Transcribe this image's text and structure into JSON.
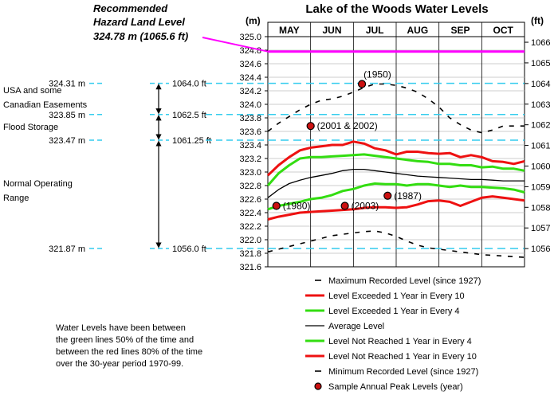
{
  "chart_data": {
    "type": "line",
    "title": "Lake of the Woods Water Levels",
    "ylabel_left": "(m)",
    "ylabel_right": "(ft)",
    "months": [
      "MAY",
      "JUN",
      "JUL",
      "AUG",
      "SEP",
      "OCT"
    ],
    "y_ticks_m": [
      "325.0",
      "324.8",
      "324.6",
      "324.4",
      "324.2",
      "324.0",
      "323.8",
      "323.6",
      "323.4",
      "323.2",
      "323.0",
      "322.8",
      "322.6",
      "322.4",
      "322.2",
      "322.0",
      "321.8",
      "321.6"
    ],
    "y_ticks_ft": [
      "1066",
      "1065",
      "1064",
      "1063",
      "1062",
      "1061",
      "1060",
      "1059",
      "1058",
      "1057",
      "1056"
    ],
    "ylim_m": [
      321.6,
      325.0
    ],
    "grid": true,
    "hazard": {
      "title_line1": "Recommended",
      "title_line2": "Hazard Land Level",
      "value_text": "324.78 m (1065.6 ft)",
      "value_m": 324.78,
      "color": "#ff00ff"
    },
    "reference_levels": [
      {
        "m_text": "324.31 m",
        "ft_text": "1064.0 ft",
        "value_m": 324.31
      },
      {
        "m_text": "323.85 m",
        "ft_text": "1062.5 ft",
        "value_m": 323.85
      },
      {
        "m_text": "323.47 m",
        "ft_text": "1061.25 ft",
        "value_m": 323.47
      },
      {
        "m_text": "321.87 m",
        "ft_text": "1056.0 ft",
        "value_m": 321.87
      }
    ],
    "reference_color": "#33ccee",
    "zone_labels": {
      "usa_line1": "USA  and some",
      "usa_line2": "Canadian Easements",
      "flood": "Flood Storage",
      "normal_line1": "Normal Operating",
      "normal_line2": "Range"
    },
    "series": [
      {
        "name": "Maximum Recorded Level (since 1927)",
        "color": "#000000",
        "style": "dashed",
        "x": [
          0.0,
          0.25,
          0.5,
          0.75,
          1.0,
          1.25,
          1.5,
          1.75,
          2.0,
          2.25,
          2.5,
          2.75,
          3.0,
          3.25,
          3.5,
          3.75,
          4.0,
          4.25,
          4.5,
          4.75,
          5.0,
          5.25,
          5.5,
          5.75,
          6.0
        ],
        "y": [
          323.6,
          323.72,
          323.82,
          323.92,
          324.0,
          324.06,
          324.08,
          324.12,
          324.18,
          324.25,
          324.3,
          324.3,
          324.28,
          324.24,
          324.18,
          324.08,
          323.96,
          323.8,
          323.7,
          323.62,
          323.58,
          323.62,
          323.68,
          323.68,
          323.68
        ]
      },
      {
        "name": "Level Exceeded 1 Year in Every 10",
        "color": "#ee1111",
        "style": "solid",
        "x": [
          0.0,
          0.25,
          0.5,
          0.75,
          1.0,
          1.25,
          1.5,
          1.75,
          2.0,
          2.25,
          2.5,
          2.75,
          3.0,
          3.25,
          3.5,
          3.75,
          4.0,
          4.25,
          4.5,
          4.75,
          5.0,
          5.25,
          5.5,
          5.75,
          6.0
        ],
        "y": [
          322.95,
          323.1,
          323.22,
          323.32,
          323.36,
          323.38,
          323.4,
          323.4,
          323.45,
          323.42,
          323.35,
          323.32,
          323.26,
          323.3,
          323.3,
          323.28,
          323.27,
          323.28,
          323.22,
          323.25,
          323.22,
          323.16,
          323.15,
          323.12,
          323.16
        ]
      },
      {
        "name": "Level Exceeded 1 Year in Every 4",
        "color": "#33dd11",
        "style": "solid",
        "x": [
          0.0,
          0.25,
          0.5,
          0.75,
          1.0,
          1.25,
          1.5,
          1.75,
          2.0,
          2.25,
          2.5,
          2.75,
          3.0,
          3.25,
          3.5,
          3.75,
          4.0,
          4.25,
          4.5,
          4.75,
          5.0,
          5.25,
          5.5,
          5.75,
          6.0
        ],
        "y": [
          322.8,
          322.98,
          323.1,
          323.2,
          323.22,
          323.22,
          323.23,
          323.24,
          323.25,
          323.26,
          323.24,
          323.22,
          323.2,
          323.18,
          323.16,
          323.15,
          323.12,
          323.12,
          323.1,
          323.1,
          323.07,
          323.08,
          323.05,
          323.05,
          323.02
        ]
      },
      {
        "name": "Average Level",
        "color": "#000000",
        "style": "solid",
        "x": [
          0.0,
          0.25,
          0.5,
          0.75,
          1.0,
          1.25,
          1.5,
          1.75,
          2.0,
          2.25,
          2.5,
          2.75,
          3.0,
          3.25,
          3.5,
          3.75,
          4.0,
          4.25,
          4.5,
          4.75,
          5.0,
          5.25,
          5.5,
          5.75,
          6.0
        ],
        "y": [
          322.62,
          322.74,
          322.83,
          322.88,
          322.92,
          322.95,
          322.98,
          323.02,
          323.04,
          323.04,
          323.02,
          323.0,
          322.98,
          322.96,
          322.94,
          322.93,
          322.92,
          322.91,
          322.9,
          322.89,
          322.89,
          322.88,
          322.87,
          322.87,
          322.87
        ]
      },
      {
        "name": "Level Not Reached 1 Year in Every 4",
        "color": "#33dd11",
        "style": "solid",
        "x": [
          0.0,
          0.25,
          0.5,
          0.75,
          1.0,
          1.25,
          1.5,
          1.75,
          2.0,
          2.25,
          2.5,
          2.75,
          3.0,
          3.25,
          3.5,
          3.75,
          4.0,
          4.25,
          4.5,
          4.75,
          5.0,
          5.25,
          5.5,
          5.75,
          6.0
        ],
        "y": [
          322.45,
          322.5,
          322.53,
          322.56,
          322.6,
          322.62,
          322.66,
          322.72,
          322.75,
          322.8,
          322.83,
          322.82,
          322.82,
          322.8,
          322.82,
          322.82,
          322.8,
          322.78,
          322.8,
          322.78,
          322.78,
          322.77,
          322.76,
          322.74,
          322.7
        ]
      },
      {
        "name": "Level Not Reached 1 Year in Every 10",
        "color": "#ee1111",
        "style": "solid",
        "x": [
          0.0,
          0.25,
          0.5,
          0.75,
          1.0,
          1.25,
          1.5,
          1.75,
          2.0,
          2.25,
          2.5,
          2.75,
          3.0,
          3.25,
          3.5,
          3.75,
          4.0,
          4.25,
          4.5,
          4.75,
          5.0,
          5.25,
          5.5,
          5.75,
          6.0
        ],
        "y": [
          322.3,
          322.34,
          322.37,
          322.4,
          322.41,
          322.42,
          322.43,
          322.44,
          322.45,
          322.47,
          322.48,
          322.48,
          322.47,
          322.48,
          322.52,
          322.57,
          322.58,
          322.56,
          322.5,
          322.56,
          322.62,
          322.64,
          322.62,
          322.6,
          322.58
        ]
      },
      {
        "name": "Minimum Recorded Level (since 1927)",
        "color": "#000000",
        "style": "dashed",
        "x": [
          0.0,
          0.25,
          0.5,
          0.75,
          1.0,
          1.25,
          1.5,
          1.75,
          2.0,
          2.25,
          2.5,
          2.75,
          3.0,
          3.25,
          3.5,
          3.75,
          4.0,
          4.25,
          4.5,
          4.75,
          5.0,
          5.25,
          5.5,
          5.75,
          6.0
        ],
        "y": [
          321.82,
          321.86,
          321.9,
          321.94,
          321.98,
          322.02,
          322.06,
          322.08,
          322.1,
          322.12,
          322.13,
          322.1,
          322.05,
          321.98,
          321.92,
          321.88,
          321.86,
          321.84,
          321.82,
          321.8,
          321.78,
          321.77,
          321.76,
          321.75,
          321.74
        ]
      }
    ],
    "peaks": [
      {
        "label": "(1950)",
        "month": 2.2,
        "value": 324.3
      },
      {
        "label": "(2001 & 2002)",
        "month": 1.0,
        "value": 323.68
      },
      {
        "label": "(1980)",
        "month": 0.2,
        "value": 322.5
      },
      {
        "label": "(2003)",
        "month": 1.8,
        "value": 322.5
      },
      {
        "label": "(1987)",
        "month": 2.8,
        "value": 322.65
      }
    ],
    "legend": [
      {
        "label": "Maximum Recorded Level (since 1927)",
        "color": "#000000",
        "kind": "dash"
      },
      {
        "label": "Level Exceeded 1 Year in Every 10",
        "color": "#ee1111",
        "kind": "line-thick"
      },
      {
        "label": "Level Exceeded 1 Year in Every 4",
        "color": "#33dd11",
        "kind": "line-thick"
      },
      {
        "label": "Average Level",
        "color": "#000000",
        "kind": "line"
      },
      {
        "label": "Level Not Reached 1 Year in Every 4",
        "color": "#33dd11",
        "kind": "line-thick"
      },
      {
        "label": "Level Not Reached 1 Year in Every 10",
        "color": "#ee1111",
        "kind": "line-thick"
      },
      {
        "label": "Minimum Recorded Level (since 1927)",
        "color": "#000000",
        "kind": "dash"
      },
      {
        "label": "Sample Annual Peak Levels (year)",
        "color": "#cc1111",
        "kind": "dot"
      }
    ],
    "note": [
      "Water Levels have been between",
      "the green lines 50% of the time and",
      "between the red lines 80% of the time",
      "over the 30-year period 1970-99."
    ]
  }
}
